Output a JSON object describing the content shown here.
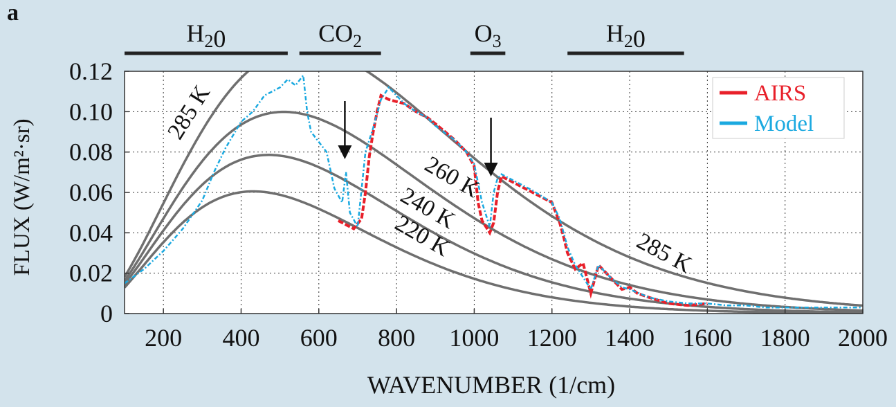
{
  "chart_data": {
    "type": "line",
    "panel_label": "a",
    "xlabel": "WAVENUMBER (1/cm)",
    "ylabel": "FLUX (W/m²·sr)",
    "xlim": [
      100,
      2000
    ],
    "ylim": [
      0,
      0.12
    ],
    "x_ticks": [
      200,
      400,
      600,
      800,
      1000,
      1200,
      1400,
      1600,
      1800,
      2000
    ],
    "y_ticks": [
      0,
      0.02,
      0.04,
      0.06,
      0.08,
      0.1,
      0.12
    ],
    "y_tick_labels": [
      "0",
      "0.02",
      "0.04",
      "0.06",
      "0.08",
      "0.10",
      "0.12"
    ],
    "grid": true,
    "legend_position": "top-right",
    "bands": [
      {
        "label": "H₂0",
        "x_start": 100,
        "x_end": 520
      },
      {
        "label": "CO₂",
        "x_start": 550,
        "x_end": 760
      },
      {
        "label": "O₃",
        "x_start": 990,
        "x_end": 1080
      },
      {
        "label": "H₂0",
        "x_start": 1240,
        "x_end": 1540
      }
    ],
    "planck_curves": [
      {
        "label": "285 K",
        "temperature_K": 285
      },
      {
        "label": "260 K",
        "temperature_K": 260
      },
      {
        "label": "240 K",
        "temperature_K": 240
      },
      {
        "label": "220 K",
        "temperature_K": 220
      }
    ],
    "arrows_x": [
      667,
      1043
    ],
    "series": [
      {
        "name": "AIRS",
        "color": "#e8202a",
        "x": [
          650,
          670,
          690,
          710,
          720,
          730,
          740,
          750,
          760,
          780,
          800,
          820,
          850,
          880,
          900,
          950,
          980,
          1000,
          1010,
          1020,
          1030,
          1040,
          1050,
          1060,
          1070,
          1100,
          1150,
          1200,
          1220,
          1230,
          1240,
          1260,
          1280,
          1300,
          1320,
          1340,
          1360,
          1380,
          1400,
          1420,
          1450,
          1500,
          1550,
          1600
        ],
        "values": [
          0.046,
          0.044,
          0.042,
          0.047,
          0.06,
          0.078,
          0.09,
          0.1,
          0.108,
          0.106,
          0.105,
          0.104,
          0.1,
          0.097,
          0.094,
          0.086,
          0.08,
          0.073,
          0.055,
          0.046,
          0.043,
          0.04,
          0.045,
          0.06,
          0.068,
          0.065,
          0.06,
          0.055,
          0.045,
          0.038,
          0.03,
          0.022,
          0.025,
          0.01,
          0.024,
          0.02,
          0.016,
          0.012,
          0.013,
          0.01,
          0.008,
          0.005,
          0.004,
          0.005
        ]
      },
      {
        "name": "Model",
        "color": "#1aa9e0",
        "x": [
          100,
          150,
          200,
          250,
          300,
          330,
          360,
          400,
          430,
          460,
          480,
          500,
          520,
          540,
          560,
          570,
          580,
          600,
          620,
          640,
          660,
          670,
          680,
          700,
          720,
          740,
          760,
          780,
          800,
          820,
          850,
          880,
          900,
          950,
          980,
          1000,
          1020,
          1040,
          1050,
          1060,
          1070,
          1100,
          1150,
          1200,
          1220,
          1240,
          1260,
          1300,
          1320,
          1350,
          1380,
          1400,
          1450,
          1500,
          1550,
          1600,
          1650,
          1700,
          1750,
          1800,
          1850,
          1900,
          1950,
          2000
        ],
        "values": [
          0.015,
          0.022,
          0.031,
          0.042,
          0.056,
          0.07,
          0.082,
          0.095,
          0.1,
          0.108,
          0.11,
          0.112,
          0.116,
          0.113,
          0.118,
          0.1,
          0.09,
          0.085,
          0.08,
          0.062,
          0.055,
          0.07,
          0.05,
          0.043,
          0.08,
          0.092,
          0.106,
          0.112,
          0.108,
          0.104,
          0.1,
          0.097,
          0.093,
          0.086,
          0.08,
          0.074,
          0.055,
          0.043,
          0.06,
          0.067,
          0.069,
          0.066,
          0.061,
          0.055,
          0.047,
          0.033,
          0.024,
          0.012,
          0.024,
          0.018,
          0.013,
          0.012,
          0.008,
          0.006,
          0.005,
          0.005,
          0.004,
          0.004,
          0.003,
          0.003,
          0.003,
          0.003,
          0.003,
          0.003
        ]
      }
    ]
  }
}
